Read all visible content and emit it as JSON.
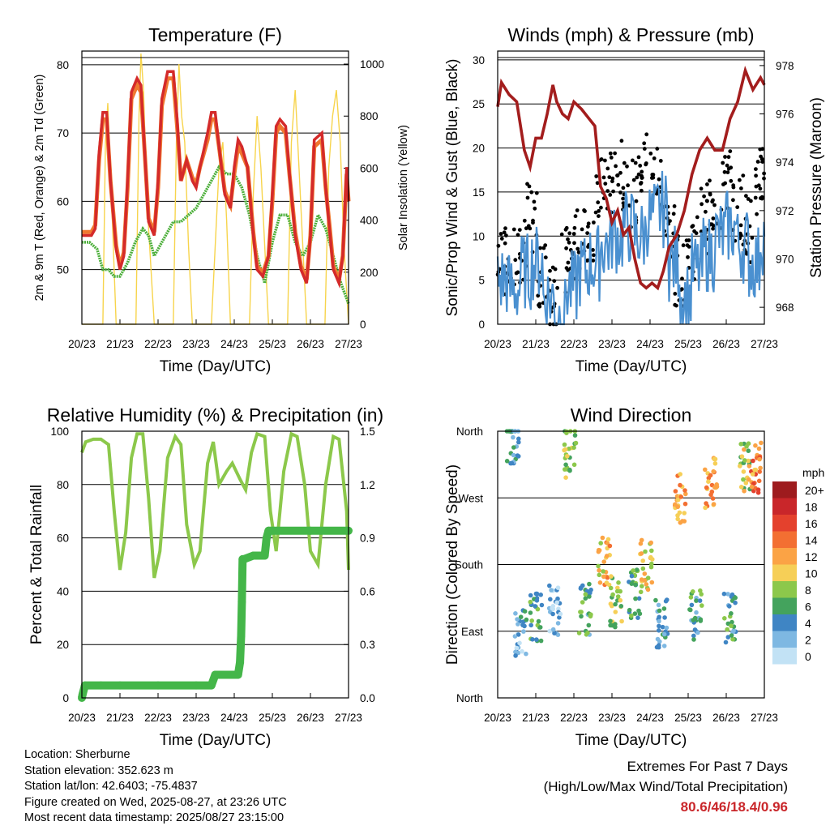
{
  "chart_data": [
    {
      "type": "line",
      "title": "Temperature (F)",
      "xlabel": "Time (Day/UTC)",
      "ylabel": "2m & 9m T (Red, Orange) & 2m Td (Green)",
      "y2label": "Solar Insolation (Yellow)",
      "x_ticks": [
        "20/23",
        "21/23",
        "22/23",
        "23/23",
        "24/23",
        "25/23",
        "26/23",
        "27/23"
      ],
      "xlim": [
        0,
        7
      ],
      "ylim": [
        42,
        82
      ],
      "y_ticks": [
        50,
        60,
        70,
        80
      ],
      "y2lim": [
        0,
        1050
      ],
      "y2_ticks": [
        0,
        200,
        400,
        600,
        800,
        1000
      ],
      "grid": true,
      "series": [
        {
          "key": "t2m",
          "color": "#d42a2a",
          "x": [
            0,
            0.1,
            0.25,
            0.35,
            0.45,
            0.55,
            0.65,
            0.75,
            0.9,
            1,
            1.1,
            1.2,
            1.3,
            1.45,
            1.55,
            1.65,
            1.75,
            1.9,
            2,
            2.1,
            2.25,
            2.4,
            2.5,
            2.6,
            2.75,
            2.9,
            3,
            3.1,
            3.3,
            3.4,
            3.5,
            3.6,
            3.75,
            3.9,
            4,
            4.1,
            4.2,
            4.35,
            4.5,
            4.6,
            4.75,
            4.9,
            5,
            5.1,
            5.2,
            5.35,
            5.45,
            5.6,
            5.75,
            5.9,
            6,
            6.1,
            6.3,
            6.4,
            6.5,
            6.6,
            6.75,
            6.85,
            6.95,
            7
          ],
          "values": [
            55,
            55,
            55,
            56,
            67,
            73,
            73,
            63,
            53,
            50,
            52,
            63,
            76,
            78,
            77,
            67,
            57,
            55,
            63,
            75,
            79,
            79,
            72,
            63,
            66,
            63,
            62,
            65,
            70,
            73,
            73,
            68,
            61,
            59,
            65,
            69,
            68,
            65,
            55,
            50,
            49,
            52,
            61,
            71,
            72,
            71,
            64,
            55,
            50,
            48,
            55,
            69,
            70,
            62,
            56,
            50,
            48,
            52,
            65,
            60
          ]
        },
        {
          "key": "t9m",
          "color": "#f07830",
          "x": [
            0,
            0.1,
            0.25,
            0.35,
            0.45,
            0.55,
            0.65,
            0.75,
            0.9,
            1,
            1.1,
            1.2,
            1.3,
            1.45,
            1.55,
            1.65,
            1.75,
            1.9,
            2,
            2.1,
            2.25,
            2.4,
            2.5,
            2.6,
            2.75,
            2.9,
            3,
            3.1,
            3.3,
            3.4,
            3.5,
            3.6,
            3.75,
            3.9,
            4,
            4.1,
            4.2,
            4.35,
            4.5,
            4.6,
            4.75,
            4.9,
            5,
            5.1,
            5.2,
            5.35,
            5.45,
            5.6,
            5.75,
            5.9,
            6,
            6.1,
            6.3,
            6.4,
            6.5,
            6.6,
            6.75,
            6.85,
            6.95,
            7
          ],
          "values": [
            55.5,
            55.5,
            55.5,
            56.5,
            66,
            72,
            72,
            63,
            53.5,
            50.5,
            52.5,
            62,
            75,
            77,
            76,
            67,
            57.5,
            55.5,
            62,
            74,
            78,
            78,
            71,
            63,
            66,
            63.5,
            62.5,
            65,
            69,
            72,
            72,
            68,
            61.5,
            59.5,
            64,
            68,
            67,
            65,
            55.5,
            50.5,
            49.5,
            52,
            60,
            70,
            71,
            70,
            64,
            55.5,
            50.5,
            48.5,
            55,
            68,
            69,
            62,
            56.5,
            50.5,
            48.5,
            52,
            64,
            60
          ]
        },
        {
          "key": "td2m",
          "color": "#4caf3a",
          "x": [
            0,
            0.2,
            0.4,
            0.55,
            0.7,
            0.85,
            1,
            1.2,
            1.4,
            1.6,
            1.75,
            1.9,
            2,
            2.2,
            2.4,
            2.6,
            2.8,
            3,
            3.2,
            3.4,
            3.6,
            3.8,
            4,
            4.2,
            4.4,
            4.6,
            4.8,
            5,
            5.2,
            5.4,
            5.6,
            5.8,
            6,
            6.2,
            6.4,
            6.6,
            6.8,
            7
          ],
          "values": [
            54,
            54,
            53,
            50,
            50,
            49,
            49,
            51,
            54,
            56,
            55,
            52,
            53,
            55,
            57,
            57,
            58,
            59,
            61,
            63,
            65,
            64,
            64,
            62,
            58,
            52,
            48,
            54,
            58,
            58,
            54,
            52,
            54,
            58,
            56,
            52,
            48,
            45
          ]
        },
        {
          "key": "solar",
          "color": "#f7d44c",
          "x": [
            0,
            0.55,
            0.62,
            0.68,
            0.72,
            0.8,
            0.9,
            1.42,
            1.5,
            1.55,
            1.62,
            1.7,
            1.82,
            1.9,
            2.4,
            2.48,
            2.55,
            2.62,
            2.7,
            2.8,
            2.9,
            3.4,
            3.5,
            3.6,
            3.7,
            3.8,
            3.9,
            4.4,
            4.5,
            4.6,
            4.7,
            4.8,
            4.9,
            5.4,
            5.5,
            5.6,
            5.7,
            5.8,
            5.9,
            6.38,
            6.48,
            6.58,
            6.68,
            6.78,
            6.88,
            7
          ],
          "values": [
            0,
            0,
            700,
            850,
            700,
            400,
            0,
            0,
            800,
            1040,
            900,
            500,
            200,
            0,
            0,
            700,
            1000,
            800,
            700,
            300,
            0,
            0,
            300,
            600,
            700,
            400,
            0,
            0,
            500,
            800,
            600,
            300,
            0,
            0,
            700,
            900,
            600,
            300,
            0,
            0,
            600,
            800,
            900,
            700,
            300,
            0
          ]
        }
      ]
    },
    {
      "type": "scatter",
      "title": "Winds (mph) & Pressure (mb)",
      "xlabel": "Time (Day/UTC)",
      "ylabel": "Sonic/Prop Wind & Gust (Blue, Black)",
      "y2label": "Station Pressure (Maroon)",
      "x_ticks": [
        "20/23",
        "21/23",
        "22/23",
        "23/23",
        "24/23",
        "25/23",
        "26/23",
        "27/23"
      ],
      "xlim": [
        0,
        7
      ],
      "ylim": [
        0,
        31
      ],
      "y_ticks": [
        0,
        5,
        10,
        15,
        20,
        25,
        30
      ],
      "y2lim": [
        967.3,
        978.6
      ],
      "y2_ticks": [
        968,
        970,
        972,
        974,
        976,
        978
      ],
      "grid": true,
      "series": [
        {
          "key": "wind",
          "color": "#4a90d0",
          "x": [
            0,
            0.3,
            0.6,
            0.9,
            1.2,
            1.5,
            1.8,
            2.1,
            2.4,
            2.7,
            3,
            3.3,
            3.6,
            3.9,
            4.2,
            4.5,
            4.8,
            5.1,
            5.4,
            5.7,
            6,
            6.3,
            6.6,
            6.9,
            7
          ],
          "values": [
            5,
            4,
            6,
            7,
            3,
            1,
            4,
            6,
            7,
            9,
            10,
            11,
            10,
            12,
            13,
            7,
            3,
            6,
            8,
            10,
            11,
            9,
            7,
            10,
            12
          ]
        },
        {
          "key": "gust",
          "color": "#000000",
          "x": [
            0,
            0.3,
            0.6,
            0.9,
            1.2,
            1.5,
            1.8,
            2.1,
            2.4,
            2.7,
            3,
            3.3,
            3.6,
            3.9,
            4.2,
            4.5,
            4.8,
            5.1,
            5.4,
            5.7,
            6,
            6.3,
            6.6,
            6.9,
            7
          ],
          "values": [
            9,
            7,
            8,
            12,
            6,
            3,
            7,
            9,
            11,
            15,
            16,
            17,
            15,
            18,
            17,
            11,
            6,
            9,
            12,
            14,
            16,
            13,
            11,
            15,
            17
          ]
        },
        {
          "key": "pressure",
          "color": "#a31d1d",
          "x": [
            0,
            0.1,
            0.3,
            0.5,
            0.7,
            0.85,
            1,
            1.15,
            1.3,
            1.45,
            1.55,
            1.7,
            1.85,
            2,
            2.2,
            2.4,
            2.55,
            2.7,
            2.85,
            3,
            3.15,
            3.3,
            3.45,
            3.6,
            3.75,
            3.9,
            4.05,
            4.2,
            4.35,
            4.5,
            4.7,
            4.9,
            5.1,
            5.3,
            5.5,
            5.7,
            5.9,
            6.1,
            6.3,
            6.5,
            6.7,
            6.9,
            7
          ],
          "values": [
            976.3,
            977.3,
            976.8,
            976.5,
            974.5,
            973.8,
            975.0,
            975.0,
            976.0,
            977.2,
            976.5,
            976.0,
            975.8,
            976.5,
            976.2,
            975.8,
            975.5,
            973.0,
            972.5,
            971.5,
            972.0,
            971.0,
            971.3,
            970.0,
            969.0,
            968.8,
            969.0,
            968.8,
            969.5,
            970.5,
            971.0,
            972.0,
            973.5,
            974.5,
            975.0,
            974.5,
            974.5,
            975.8,
            976.5,
            977.8,
            977.0,
            977.5,
            977.2
          ]
        }
      ]
    },
    {
      "type": "line",
      "title": "Relative Humidity (%) & Precipitation (in)",
      "xlabel": "Time (Day/UTC)",
      "ylabel": "Percent & Total Rainfall",
      "x_ticks": [
        "20/23",
        "21/23",
        "22/23",
        "23/23",
        "24/23",
        "25/23",
        "26/23",
        "27/23"
      ],
      "xlim": [
        0,
        7
      ],
      "ylim": [
        0,
        100
      ],
      "y_ticks": [
        0,
        20,
        40,
        60,
        80,
        100
      ],
      "y2lim": [
        0,
        1.5
      ],
      "y2_ticks": [
        "0.0",
        "0.3",
        "0.6",
        "0.9",
        "1.2",
        "1.5"
      ],
      "grid": true,
      "series": [
        {
          "key": "rh",
          "color": "#8cc84b",
          "x": [
            0,
            0.1,
            0.3,
            0.5,
            0.7,
            0.85,
            1,
            1.15,
            1.3,
            1.45,
            1.6,
            1.75,
            1.9,
            2.05,
            2.25,
            2.45,
            2.6,
            2.75,
            2.95,
            3.1,
            3.3,
            3.45,
            3.6,
            3.8,
            3.95,
            4.15,
            4.3,
            4.45,
            4.6,
            4.8,
            4.95,
            5.1,
            5.3,
            5.5,
            5.65,
            5.85,
            6,
            6.2,
            6.4,
            6.6,
            6.75,
            6.95,
            7
          ],
          "values": [
            92,
            96,
            97,
            97,
            95,
            70,
            48,
            62,
            90,
            99,
            99,
            75,
            45,
            55,
            90,
            98,
            95,
            65,
            50,
            55,
            88,
            96,
            80,
            85,
            88,
            82,
            78,
            92,
            99,
            98,
            70,
            55,
            85,
            99,
            98,
            80,
            55,
            50,
            80,
            98,
            97,
            70,
            48
          ]
        },
        {
          "key": "precip",
          "color": "#44b649",
          "x": [
            0,
            0.02,
            0.08,
            0.5,
            1,
            2,
            3,
            3.4,
            3.5,
            3.9,
            4,
            4.1,
            4.15,
            4.18,
            4.2,
            4.22,
            4.25,
            4.5,
            4.8,
            4.85,
            4.9,
            5,
            6,
            7
          ],
          "values": [
            0,
            0.02,
            0.07,
            0.07,
            0.07,
            0.07,
            0.07,
            0.07,
            0.13,
            0.13,
            0.13,
            0.13,
            0.2,
            0.35,
            0.54,
            0.78,
            0.78,
            0.8,
            0.8,
            0.9,
            0.94,
            0.94,
            0.94,
            0.94
          ]
        }
      ]
    },
    {
      "type": "scatter",
      "title": "Wind Direction",
      "xlabel": "Time (Day/UTC)",
      "ylabel": "Direction (Colored By Speed)",
      "x_ticks": [
        "20/23",
        "21/23",
        "22/23",
        "23/23",
        "24/23",
        "25/23",
        "26/23",
        "27/23"
      ],
      "xlim": [
        0,
        7
      ],
      "y_ticks": [
        "North",
        "East",
        "South",
        "West",
        "North"
      ],
      "ylim": [
        0,
        360
      ],
      "legend_title": "mph",
      "legend_labels": [
        "20+",
        "18",
        "16",
        "14",
        "12",
        "10",
        "8",
        "6",
        "4",
        "2",
        "0"
      ],
      "legend_colors": [
        "#9e1b1e",
        "#c9262a",
        "#e4412d",
        "#f36f32",
        "#fba345",
        "#f6cf57",
        "#8cc84b",
        "#44a35d",
        "#3f85c4",
        "#7eb8e2",
        "#c2e2f5"
      ],
      "legend_position": "right",
      "clusters": [
        {
          "x": 0.4,
          "dir": 350,
          "speed": 4
        },
        {
          "x": 0.6,
          "dir": 90,
          "speed": 3
        },
        {
          "x": 1.0,
          "dir": 110,
          "speed": 6
        },
        {
          "x": 1.5,
          "dir": 120,
          "speed": 2
        },
        {
          "x": 1.9,
          "dir": 330,
          "speed": 8
        },
        {
          "x": 2.3,
          "dir": 120,
          "speed": 5
        },
        {
          "x": 2.8,
          "dir": 185,
          "speed": 11
        },
        {
          "x": 3.1,
          "dir": 130,
          "speed": 8
        },
        {
          "x": 3.6,
          "dir": 140,
          "speed": 6
        },
        {
          "x": 3.9,
          "dir": 180,
          "speed": 10
        },
        {
          "x": 4.3,
          "dir": 100,
          "speed": 4
        },
        {
          "x": 4.8,
          "dir": 270,
          "speed": 12
        },
        {
          "x": 5.2,
          "dir": 110,
          "speed": 5
        },
        {
          "x": 5.6,
          "dir": 290,
          "speed": 12
        },
        {
          "x": 6.1,
          "dir": 110,
          "speed": 5
        },
        {
          "x": 6.5,
          "dir": 310,
          "speed": 9
        },
        {
          "x": 6.8,
          "dir": 310,
          "speed": 13
        }
      ]
    }
  ],
  "footer": {
    "location": "Location: Sherburne",
    "elevation": "Station elevation: 352.623 m",
    "latlon": "Station lat/lon: 42.6403; -75.4837",
    "created": "Figure created on Wed, 2025-08-27, at 23:26 UTC",
    "recent": "Most recent data timestamp: 2025/08/27 23:15:00",
    "extremes_title": "Extremes For Past 7 Days",
    "extremes_subtitle": "(High/Low/Max Wind/Total Precipitation)",
    "extremes_values": "80.6/46/18.4/0.96",
    "extremes_color": "#c9262a"
  }
}
